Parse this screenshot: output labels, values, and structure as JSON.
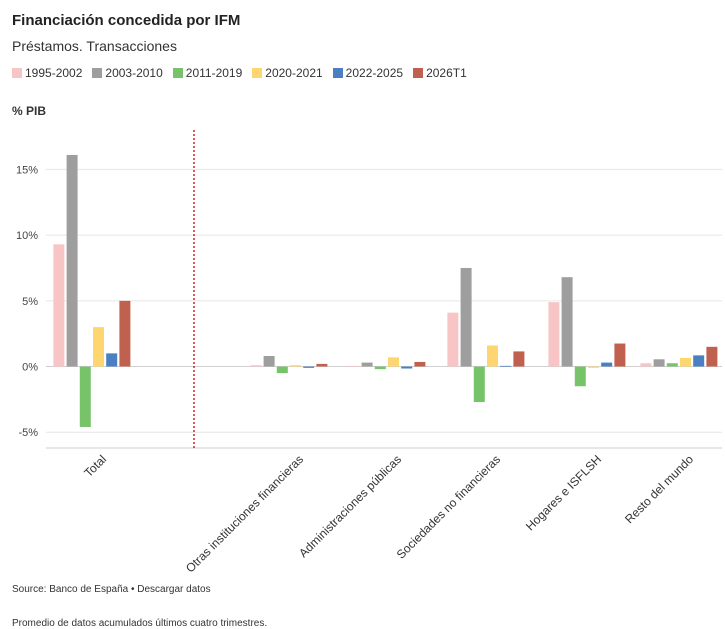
{
  "header": {
    "title": "Financiación concedida por IFM",
    "subtitle": "Préstamos. Transacciones"
  },
  "footer": {
    "source": "Source: Banco de España • Descargar datos",
    "note": "Promedio de datos acumulados últimos cuatro trimestres."
  },
  "chart_data": {
    "type": "bar",
    "ylabel": "% PIB",
    "yticks": [
      "-5%",
      "0%",
      "5%",
      "10%",
      "15%"
    ],
    "ytick_values": [
      -5,
      0,
      5,
      10,
      15
    ],
    "ylim": [
      -6.2,
      18
    ],
    "grid": true,
    "legend_position": "top-left",
    "separator_after_category": 0,
    "categories": [
      "Total",
      "Otras instituciones financieras",
      "Administraciones públicas",
      "Sociedades no financieras",
      "Hogares e ISFLSH",
      "Resto del mundo"
    ],
    "series": [
      {
        "name": "1995-2002",
        "color": "#f7c5c5",
        "values": [
          9.3,
          0.1,
          0.05,
          4.1,
          4.9,
          0.25
        ]
      },
      {
        "name": "2003-2010",
        "color": "#9e9e9e",
        "values": [
          16.1,
          0.8,
          0.3,
          7.5,
          6.8,
          0.55
        ]
      },
      {
        "name": "2011-2019",
        "color": "#77c36a",
        "values": [
          -4.6,
          -0.5,
          -0.2,
          -2.7,
          -1.5,
          0.25
        ]
      },
      {
        "name": "2020-2021",
        "color": "#fdd66f",
        "values": [
          3.0,
          0.1,
          0.7,
          1.6,
          -0.1,
          0.65
        ]
      },
      {
        "name": "2022-2025",
        "color": "#4a7fc1",
        "values": [
          1.0,
          -0.1,
          -0.15,
          0.05,
          0.3,
          0.85
        ]
      },
      {
        "name": "2026T1",
        "color": "#c0604f",
        "values": [
          5.0,
          0.2,
          0.35,
          1.15,
          1.75,
          1.5
        ]
      }
    ]
  }
}
